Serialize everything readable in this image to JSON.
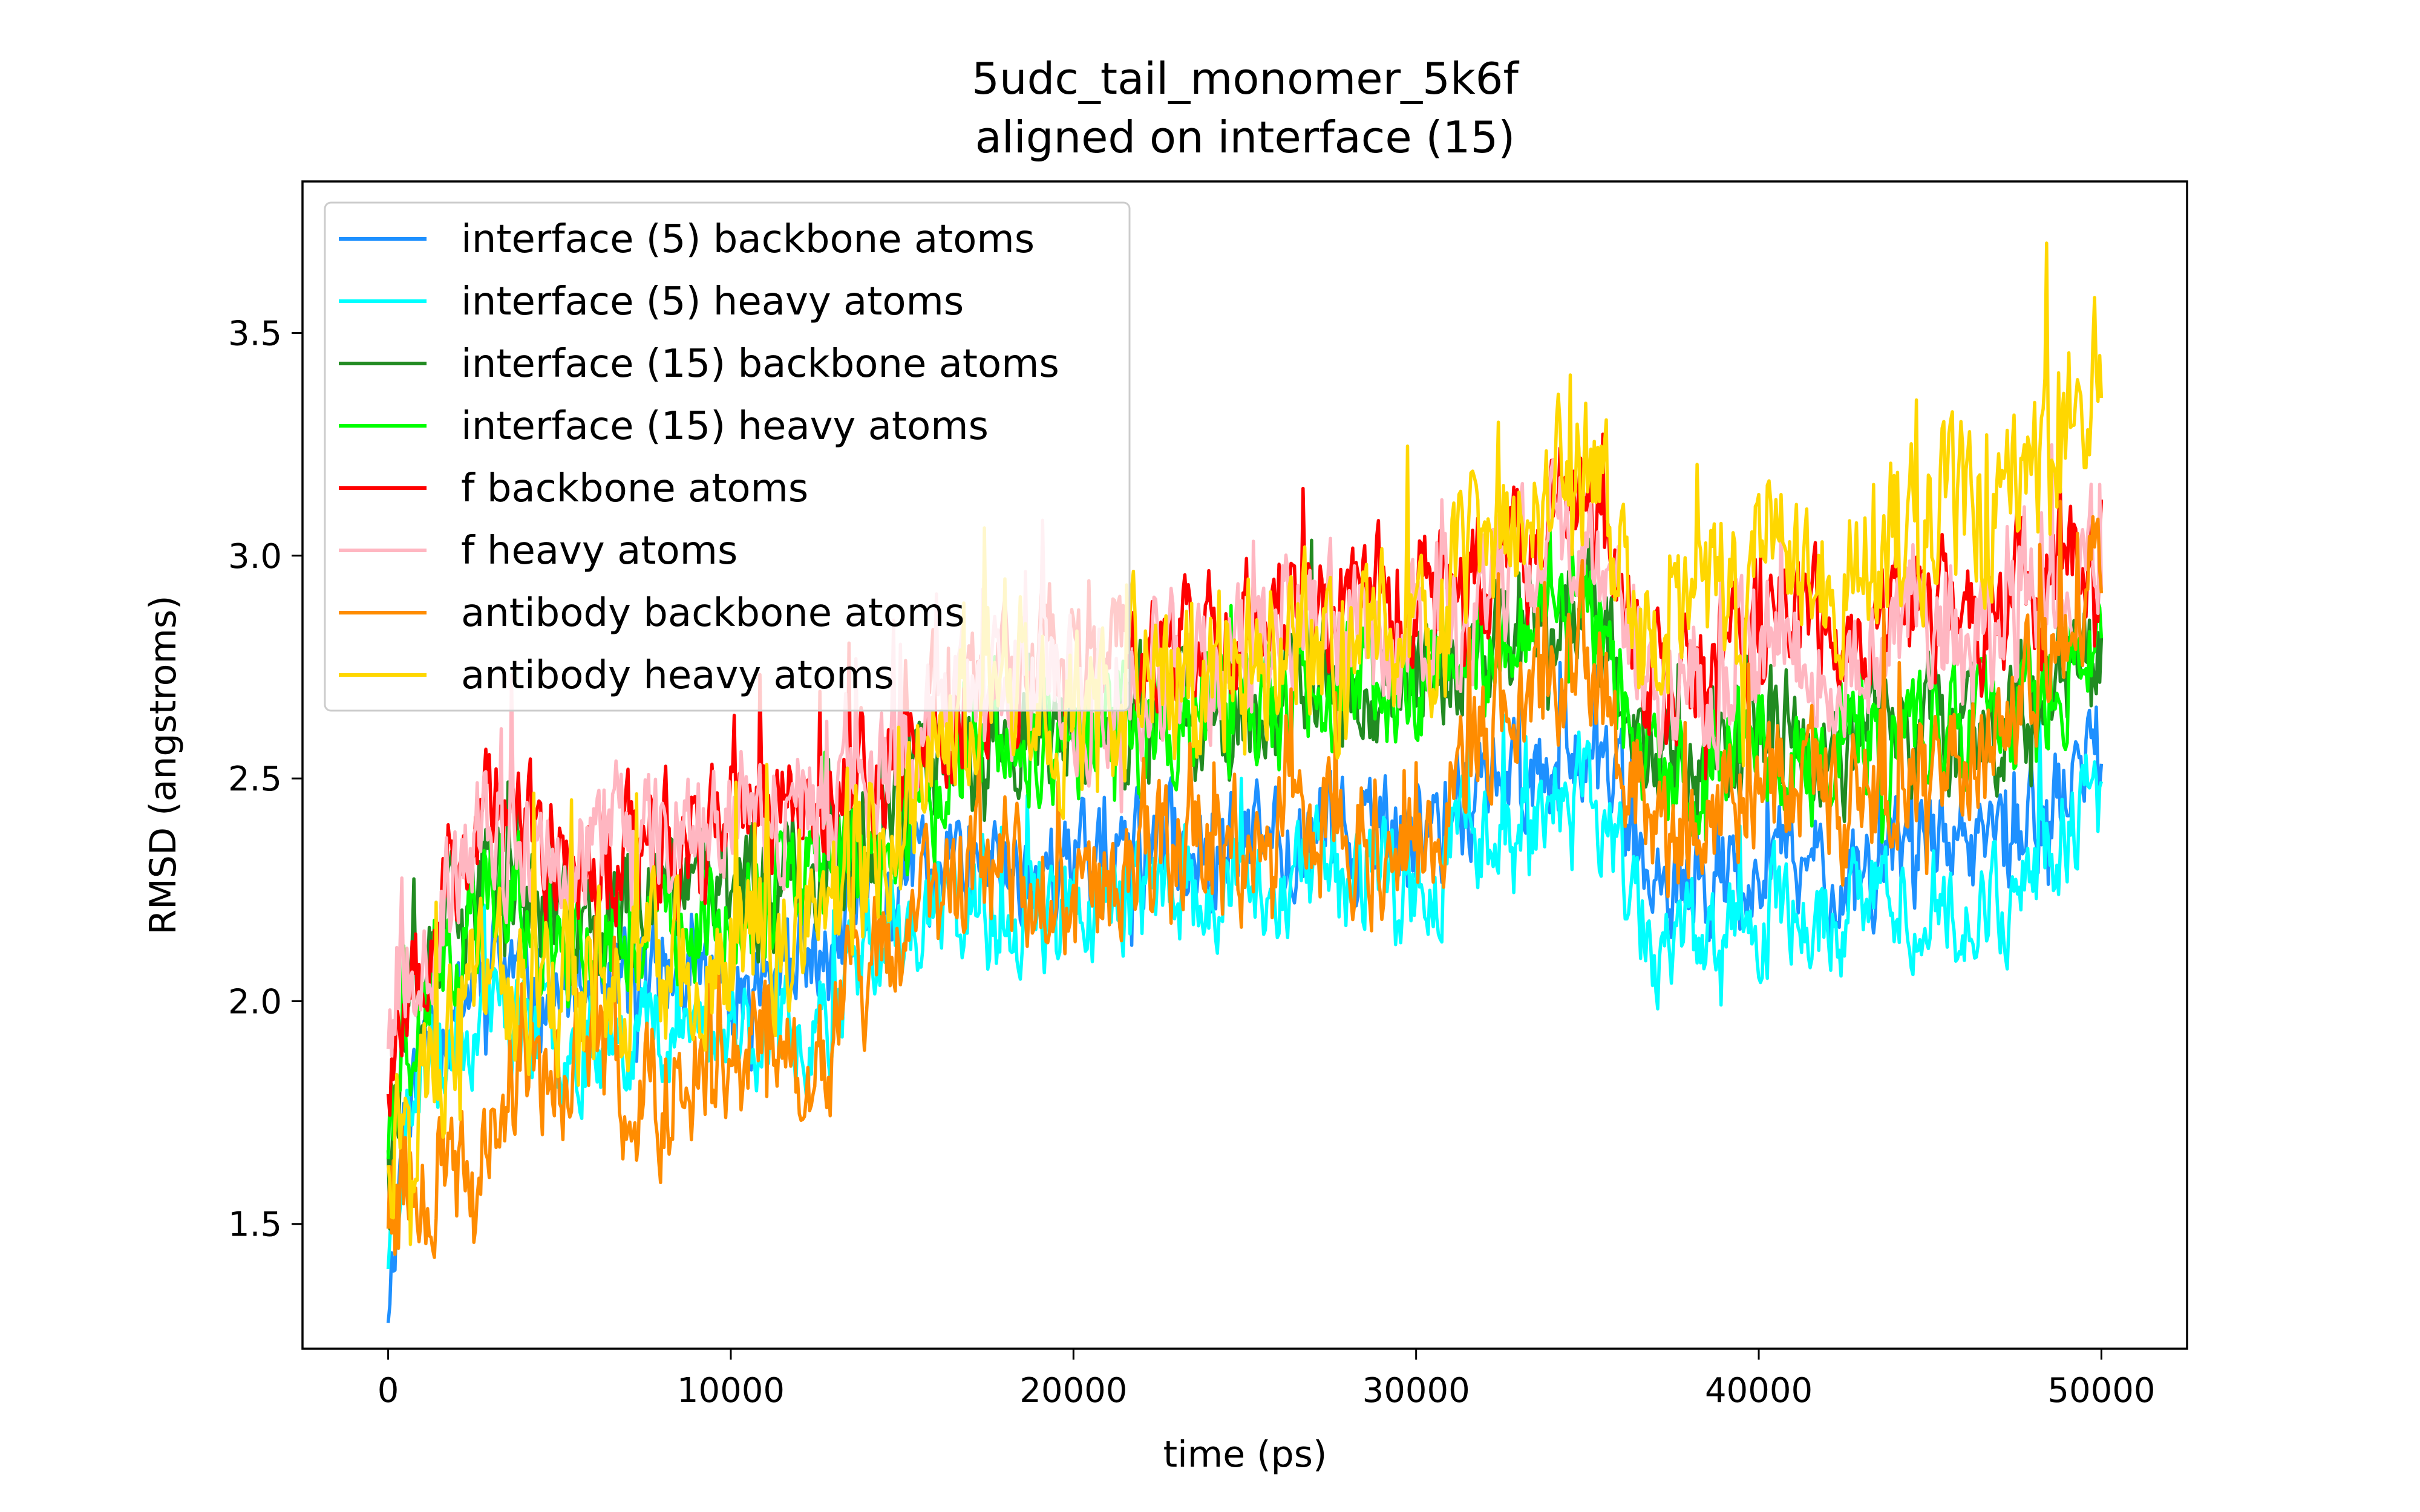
{
  "chart_data": {
    "type": "line",
    "title": "5udc_tail_monomer_5k6f",
    "subtitle": "aligned on interface (15)",
    "xlabel": "time (ps)",
    "ylabel": "RMSD (angstroms)",
    "xlim": [
      -2500,
      52500
    ],
    "ylim": [
      1.22,
      3.84
    ],
    "xticks": [
      0,
      10000,
      20000,
      30000,
      40000,
      50000
    ],
    "xtick_labels": [
      "0",
      "10000",
      "20000",
      "30000",
      "40000",
      "50000"
    ],
    "yticks": [
      1.5,
      2.0,
      2.5,
      3.0,
      3.5
    ],
    "ytick_labels": [
      "1.5",
      "2.0",
      "2.5",
      "3.0",
      "3.5"
    ],
    "grid": false,
    "legend_position": "top-left",
    "x_range": [
      0,
      50000
    ],
    "series": [
      {
        "name": "interface (5) backbone atoms",
        "color": "#1e90ff",
        "anchors": [
          [
            0,
            1.33
          ],
          [
            500,
            1.8
          ],
          [
            1500,
            1.95
          ],
          [
            3000,
            2.1
          ],
          [
            5000,
            2.0
          ],
          [
            7500,
            2.05
          ],
          [
            10000,
            2.05
          ],
          [
            12500,
            2.05
          ],
          [
            14000,
            2.2
          ],
          [
            16000,
            2.3
          ],
          [
            18000,
            2.3
          ],
          [
            20000,
            2.3
          ],
          [
            22500,
            2.35
          ],
          [
            25000,
            2.35
          ],
          [
            27500,
            2.4
          ],
          [
            30000,
            2.35
          ],
          [
            32000,
            2.5
          ],
          [
            34000,
            2.55
          ],
          [
            35000,
            2.6
          ],
          [
            37000,
            2.2
          ],
          [
            38500,
            2.25
          ],
          [
            40000,
            2.3
          ],
          [
            42500,
            2.3
          ],
          [
            45000,
            2.35
          ],
          [
            46500,
            2.3
          ],
          [
            48000,
            2.4
          ],
          [
            50000,
            2.55
          ]
        ],
        "amp": 0.1,
        "spike": 0.18,
        "seed": 11
      },
      {
        "name": "interface (5) heavy atoms",
        "color": "#00ffff",
        "anchors": [
          [
            0,
            1.45
          ],
          [
            500,
            1.75
          ],
          [
            1500,
            1.9
          ],
          [
            3000,
            2.0
          ],
          [
            5000,
            1.9
          ],
          [
            7500,
            1.95
          ],
          [
            10000,
            1.95
          ],
          [
            12500,
            1.95
          ],
          [
            14000,
            2.1
          ],
          [
            16000,
            2.2
          ],
          [
            18000,
            2.2
          ],
          [
            20000,
            2.2
          ],
          [
            22500,
            2.25
          ],
          [
            25000,
            2.25
          ],
          [
            27500,
            2.3
          ],
          [
            30000,
            2.25
          ],
          [
            32000,
            2.4
          ],
          [
            34000,
            2.45
          ],
          [
            35000,
            2.5
          ],
          [
            37000,
            2.1
          ],
          [
            38500,
            2.15
          ],
          [
            40000,
            2.2
          ],
          [
            42500,
            2.2
          ],
          [
            45000,
            2.25
          ],
          [
            46500,
            2.2
          ],
          [
            48000,
            2.3
          ],
          [
            50000,
            2.45
          ]
        ],
        "amp": 0.1,
        "spike": 0.18,
        "seed": 23
      },
      {
        "name": "interface (15) backbone atoms",
        "color": "#228b22",
        "anchors": [
          [
            0,
            1.72
          ],
          [
            500,
            1.9
          ],
          [
            1500,
            2.1
          ],
          [
            3000,
            2.3
          ],
          [
            5000,
            2.15
          ],
          [
            7500,
            2.2
          ],
          [
            10000,
            2.25
          ],
          [
            12500,
            2.3
          ],
          [
            14000,
            2.35
          ],
          [
            16000,
            2.5
          ],
          [
            18000,
            2.6
          ],
          [
            20000,
            2.6
          ],
          [
            22500,
            2.65
          ],
          [
            25000,
            2.65
          ],
          [
            27500,
            2.7
          ],
          [
            30000,
            2.75
          ],
          [
            32000,
            2.8
          ],
          [
            34000,
            2.9
          ],
          [
            35000,
            2.9
          ],
          [
            37000,
            2.5
          ],
          [
            38500,
            2.55
          ],
          [
            40000,
            2.6
          ],
          [
            42500,
            2.55
          ],
          [
            45000,
            2.65
          ],
          [
            46500,
            2.6
          ],
          [
            48000,
            2.7
          ],
          [
            50000,
            2.8
          ]
        ],
        "amp": 0.11,
        "spike": 0.2,
        "seed": 37
      },
      {
        "name": "interface (15) heavy atoms",
        "color": "#00ff00",
        "anchors": [
          [
            0,
            1.7
          ],
          [
            500,
            1.88
          ],
          [
            1500,
            2.08
          ],
          [
            3000,
            2.28
          ],
          [
            5000,
            2.13
          ],
          [
            7500,
            2.18
          ],
          [
            10000,
            2.23
          ],
          [
            12500,
            2.28
          ],
          [
            14000,
            2.33
          ],
          [
            16000,
            2.48
          ],
          [
            18000,
            2.58
          ],
          [
            20000,
            2.58
          ],
          [
            22500,
            2.63
          ],
          [
            25000,
            2.63
          ],
          [
            27500,
            2.68
          ],
          [
            30000,
            2.73
          ],
          [
            32000,
            2.78
          ],
          [
            34000,
            2.88
          ],
          [
            35000,
            2.88
          ],
          [
            37000,
            2.48
          ],
          [
            38500,
            2.53
          ],
          [
            40000,
            2.58
          ],
          [
            42500,
            2.53
          ],
          [
            45000,
            2.63
          ],
          [
            46500,
            2.58
          ],
          [
            48000,
            2.68
          ],
          [
            50000,
            2.78
          ]
        ],
        "amp": 0.11,
        "spike": 0.2,
        "seed": 41
      },
      {
        "name": "f backbone atoms",
        "color": "#ff0000",
        "anchors": [
          [
            0,
            1.85
          ],
          [
            500,
            2.05
          ],
          [
            1500,
            2.25
          ],
          [
            3000,
            2.45
          ],
          [
            5000,
            2.3
          ],
          [
            7500,
            2.35
          ],
          [
            10000,
            2.4
          ],
          [
            12500,
            2.45
          ],
          [
            14000,
            2.5
          ],
          [
            16000,
            2.65
          ],
          [
            18000,
            2.75
          ],
          [
            20000,
            2.75
          ],
          [
            22500,
            2.8
          ],
          [
            25000,
            2.85
          ],
          [
            27500,
            2.9
          ],
          [
            30000,
            2.9
          ],
          [
            32000,
            2.95
          ],
          [
            34000,
            3.1
          ],
          [
            35000,
            3.1
          ],
          [
            37000,
            2.7
          ],
          [
            38500,
            2.75
          ],
          [
            40000,
            2.85
          ],
          [
            42500,
            2.8
          ],
          [
            45000,
            2.9
          ],
          [
            46500,
            2.85
          ],
          [
            48000,
            2.95
          ],
          [
            50000,
            3.05
          ]
        ],
        "amp": 0.12,
        "spike": 0.22,
        "seed": 53
      },
      {
        "name": "f heavy atoms",
        "color": "#ffb6c1",
        "anchors": [
          [
            0,
            1.95
          ],
          [
            500,
            2.1
          ],
          [
            1500,
            2.2
          ],
          [
            3000,
            2.4
          ],
          [
            5000,
            2.3
          ],
          [
            7500,
            2.4
          ],
          [
            10000,
            2.45
          ],
          [
            12500,
            2.45
          ],
          [
            14000,
            2.5
          ],
          [
            16000,
            2.6
          ],
          [
            18000,
            2.7
          ],
          [
            20000,
            2.7
          ],
          [
            22500,
            2.75
          ],
          [
            25000,
            2.8
          ],
          [
            27500,
            2.85
          ],
          [
            30000,
            2.85
          ],
          [
            32000,
            2.9
          ],
          [
            34000,
            3.05
          ],
          [
            35000,
            3.05
          ],
          [
            37000,
            2.65
          ],
          [
            38500,
            2.7
          ],
          [
            40000,
            2.8
          ],
          [
            42500,
            2.75
          ],
          [
            45000,
            2.85
          ],
          [
            46500,
            2.8
          ],
          [
            48000,
            2.9
          ],
          [
            50000,
            3.0
          ]
        ],
        "amp": 0.12,
        "spike": 0.22,
        "seed": 67
      },
      {
        "name": "antibody backbone atoms",
        "color": "#ff8c00",
        "anchors": [
          [
            0,
            1.55
          ],
          [
            500,
            1.6
          ],
          [
            1500,
            1.65
          ],
          [
            2500,
            1.5
          ],
          [
            3500,
            1.85
          ],
          [
            5000,
            1.85
          ],
          [
            7500,
            1.8
          ],
          [
            10000,
            1.9
          ],
          [
            12500,
            1.85
          ],
          [
            14000,
            2.05
          ],
          [
            16000,
            2.2
          ],
          [
            18000,
            2.3
          ],
          [
            20000,
            2.25
          ],
          [
            22500,
            2.3
          ],
          [
            25000,
            2.35
          ],
          [
            27500,
            2.4
          ],
          [
            30000,
            2.35
          ],
          [
            32000,
            2.6
          ],
          [
            34000,
            2.7
          ],
          [
            35000,
            2.8
          ],
          [
            37000,
            2.35
          ],
          [
            38500,
            2.45
          ],
          [
            40000,
            2.5
          ],
          [
            42500,
            2.45
          ],
          [
            45000,
            2.55
          ],
          [
            46500,
            2.55
          ],
          [
            48000,
            2.75
          ],
          [
            50000,
            3.0
          ]
        ],
        "amp": 0.13,
        "spike": 0.25,
        "seed": 79
      },
      {
        "name": "antibody heavy atoms",
        "color": "#ffd700",
        "anchors": [
          [
            0,
            1.7
          ],
          [
            500,
            1.8
          ],
          [
            1500,
            1.9
          ],
          [
            3000,
            2.05
          ],
          [
            5000,
            2.0
          ],
          [
            7500,
            2.05
          ],
          [
            10000,
            2.1
          ],
          [
            12500,
            2.15
          ],
          [
            14000,
            2.3
          ],
          [
            16000,
            2.6
          ],
          [
            18000,
            2.7
          ],
          [
            20000,
            2.65
          ],
          [
            22500,
            2.7
          ],
          [
            25000,
            2.75
          ],
          [
            27500,
            2.8
          ],
          [
            30000,
            2.8
          ],
          [
            32000,
            3.0
          ],
          [
            34000,
            3.15
          ],
          [
            35000,
            3.2
          ],
          [
            37000,
            2.75
          ],
          [
            38500,
            2.85
          ],
          [
            40000,
            3.0
          ],
          [
            42500,
            2.95
          ],
          [
            45000,
            3.1
          ],
          [
            46500,
            3.1
          ],
          [
            48000,
            3.2
          ],
          [
            50000,
            3.4
          ]
        ],
        "amp": 0.15,
        "spike": 0.28,
        "seed": 97
      }
    ]
  }
}
